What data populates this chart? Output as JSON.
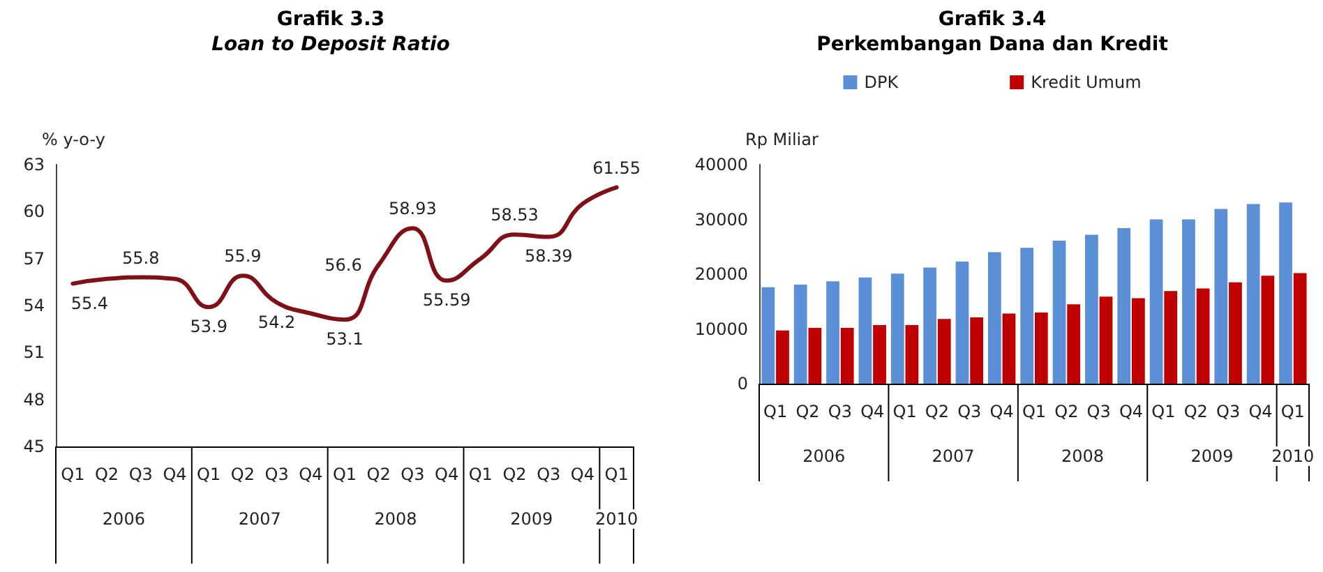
{
  "chart_data": [
    {
      "type": "line",
      "title": "Grafik 3.3",
      "subtitle": "Loan to Deposit Ratio",
      "ylabel": "% y-o-y",
      "categories": [
        "Q1",
        "Q2",
        "Q3",
        "Q4",
        "Q1",
        "Q2",
        "Q3",
        "Q4",
        "Q1",
        "Q2",
        "Q3",
        "Q4",
        "Q1",
        "Q2",
        "Q3",
        "Q4",
        "Q1"
      ],
      "series": [
        {
          "color": "#7f1017",
          "values": [
            55.4,
            55.7,
            55.8,
            55.7,
            53.9,
            55.9,
            54.2,
            53.5,
            53.1,
            56.6,
            58.93,
            55.59,
            57.0,
            58.53,
            58.39,
            60.5,
            61.55
          ],
          "value_labels": [
            "55.4",
            null,
            "55.8",
            null,
            "53.9",
            "55.9",
            "54.2",
            null,
            "53.1",
            "56.6",
            "58.93",
            "55.59",
            null,
            "58.53",
            "58.39",
            null,
            "61.55"
          ]
        }
      ],
      "ylim": [
        45,
        63
      ],
      "yticks": [
        45,
        48,
        51,
        54,
        57,
        60,
        63
      ],
      "marker": "none",
      "line_style": "solid",
      "annotations": [
        "2006",
        "2007",
        "2008",
        "2009",
        "2010"
      ]
    },
    {
      "type": "bar",
      "title": "Grafik 3.4",
      "subtitle": "Perkembangan Dana dan Kredit",
      "ylabel": "Rp Miliar",
      "categories": [
        "Q1",
        "Q2",
        "Q3",
        "Q4",
        "Q1",
        "Q2",
        "Q3",
        "Q4",
        "Q1",
        "Q2",
        "Q3",
        "Q4",
        "Q1",
        "Q2",
        "Q3",
        "Q4",
        "Q1"
      ],
      "series": [
        {
          "name": "DPK",
          "color": "#5b8fd6",
          "values": [
            17600,
            18100,
            18700,
            19400,
            20100,
            21200,
            22300,
            24000,
            24800,
            26100,
            27200,
            28400,
            30000,
            30000,
            31900,
            32800,
            33100
          ]
        },
        {
          "name": "Kredit Umum",
          "color": "#c00000",
          "values": [
            9700,
            10200,
            10200,
            10700,
            10700,
            11800,
            12100,
            12800,
            13000,
            14500,
            15900,
            15600,
            16900,
            17400,
            18500,
            19700,
            20200
          ]
        }
      ],
      "ylim": [
        0,
        40000
      ],
      "yticks": [
        0,
        10000,
        20000,
        30000,
        40000
      ],
      "legend": "top",
      "annotations": [
        "2006",
        "2007",
        "2008",
        "2009",
        "2010"
      ]
    }
  ]
}
